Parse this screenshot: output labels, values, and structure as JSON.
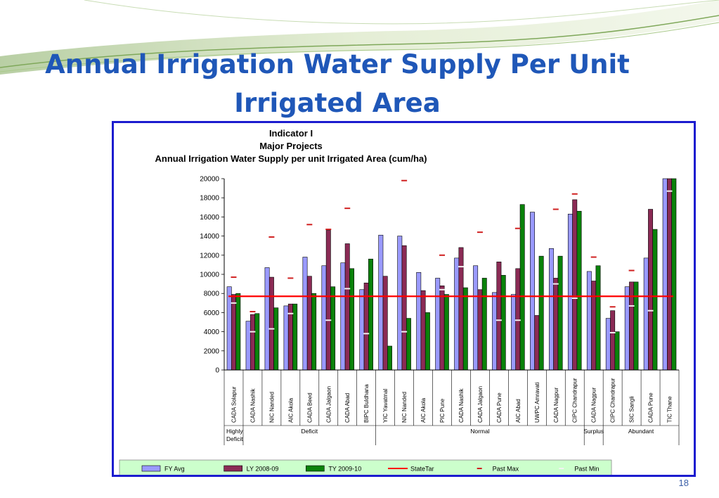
{
  "slide": {
    "title_line1": "Annual Irrigation Water Supply Per Unit",
    "title_line2": "Irrigated Area",
    "number": "18",
    "title_color": "#1f57b8",
    "frame_color": "#1c1ccf"
  },
  "chart_data": {
    "type": "bar",
    "title_lines": [
      "Indicator I",
      "Major Projects",
      "Annual Irrigation Water Supply per unit Irrigated Area (cum/ha)"
    ],
    "ylabel": "cum/ha",
    "xlabel": "",
    "ylim": [
      0,
      20000
    ],
    "yticks": [
      0,
      2000,
      4000,
      6000,
      8000,
      10000,
      12000,
      14000,
      16000,
      18000,
      20000
    ],
    "grid": false,
    "legend_position": "bottom",
    "categories": [
      "CADA Solapur",
      "CADA Nashik",
      "NIC Nanded",
      "AIC Akola",
      "CADA Beed",
      "CADA Jalgaon",
      "CADA Abad",
      "BIPC Buldhana",
      "YIC Yavatmal",
      "NIC Nanded",
      "AIC Akola",
      "PIC Pune",
      "CADA Nashik",
      "CADA Jalgaon",
      "CADA Pune",
      "AIC Abad",
      "UWPC Amravati",
      "CADA Nagpur",
      "CIPC Chandrapur",
      "CADA Nagpur",
      "CIPC Chandrapur",
      "SIC Sangli",
      "CADA Pune",
      "TIC Thane"
    ],
    "groups": [
      {
        "label": "Highly Deficit",
        "count": 1
      },
      {
        "label": "Deficit",
        "count": 7
      },
      {
        "label": "Normal",
        "count": 11
      },
      {
        "label": "Surplus",
        "count": 1
      },
      {
        "label": "Abundant",
        "count": 4
      }
    ],
    "series": [
      {
        "name": "FY Avg",
        "color": "#9a9aff",
        "values": [
          8700,
          5100,
          10700,
          6700,
          11800,
          10900,
          11200,
          8400,
          14100,
          14000,
          10200,
          9600,
          11700,
          10900,
          8100,
          7900,
          16500,
          12700,
          16300,
          10300,
          5400,
          8700,
          11700,
          20000
        ]
      },
      {
        "name": "LY 2008-09",
        "color": "#8b2b55",
        "values": [
          7900,
          5800,
          9700,
          6900,
          9800,
          14600,
          13200,
          9100,
          9800,
          13000,
          8300,
          8800,
          12800,
          8400,
          11300,
          10600,
          5700,
          9600,
          17800,
          9300,
          6200,
          9200,
          16800,
          20000
        ]
      },
      {
        "name": "TY 2009-10",
        "color": "#0a820a",
        "values": [
          8000,
          5900,
          6500,
          6900,
          8000,
          8700,
          10600,
          11600,
          2500,
          5400,
          6000,
          7900,
          8600,
          9600,
          9900,
          17300,
          11900,
          11900,
          16600,
          10900,
          4000,
          9200,
          14700,
          20000
        ]
      }
    ],
    "lines": [
      {
        "name": "StateTar",
        "color": "#ff0000",
        "value": 7700
      }
    ],
    "markers": [
      {
        "name": "Past Max",
        "color": "#d02020",
        "values": [
          9700,
          6100,
          13900,
          9600,
          15200,
          14700,
          16900,
          null,
          null,
          19800,
          null,
          12000,
          null,
          14400,
          null,
          14800,
          null,
          16800,
          18400,
          11800,
          6600,
          10400,
          null,
          null
        ]
      },
      {
        "name": "Past Min",
        "color": "#f2f2f2",
        "values": [
          7000,
          4000,
          4300,
          5900,
          null,
          5200,
          8500,
          3800,
          null,
          4000,
          null,
          8400,
          10800,
          null,
          5200,
          5200,
          null,
          9000,
          7500,
          null,
          3900,
          6700,
          6200,
          18700
        ]
      }
    ]
  }
}
